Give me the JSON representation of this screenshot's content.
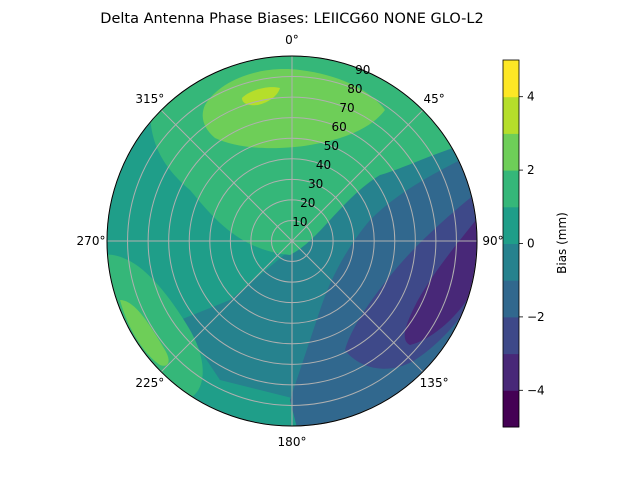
{
  "chart_data": {
    "type": "heatmap",
    "projection": "polar",
    "title": "Delta Antenna Phase Biases: LEIICG60        NONE GLO-L2",
    "theta_direction": "clockwise",
    "theta_zero": "top",
    "theta_ticks": [
      "0°",
      "45°",
      "90°",
      "135°",
      "180°",
      "225°",
      "270°",
      "315°"
    ],
    "theta_tick_degrees": [
      0,
      45,
      90,
      135,
      180,
      225,
      270,
      315
    ],
    "r_ticks": [
      "10",
      "20",
      "30",
      "40",
      "50",
      "60",
      "70",
      "80",
      "90"
    ],
    "r_tick_values": [
      10,
      20,
      30,
      40,
      50,
      60,
      70,
      80,
      90
    ],
    "r_range": [
      0,
      90
    ],
    "r_tick_label_angle_deg": 22.5,
    "grid": true,
    "colorbar": {
      "label": "Bias (mm)",
      "ticks": [
        "−4",
        "−2",
        "0",
        "2",
        "4"
      ],
      "tick_values": [
        -4,
        -2,
        0,
        2,
        4
      ],
      "range": [
        -5,
        5
      ],
      "levels": [
        -5,
        -4,
        -3,
        -2,
        -1,
        0,
        1,
        2,
        3,
        4,
        5
      ],
      "colors": [
        "#440154",
        "#482878",
        "#3e4989",
        "#31688e",
        "#26828e",
        "#1f9e89",
        "#35b779",
        "#6ece58",
        "#b5de2b",
        "#fde725"
      ]
    },
    "regions": [
      {
        "level_band": 0,
        "bias_range": [
          -1,
          0
        ],
        "description": "base"
      },
      {
        "level_band": 1,
        "bias_range": [
          0,
          1
        ],
        "description": "large band west and south"
      },
      {
        "level_band": 2,
        "bias_range": [
          1,
          2
        ],
        "description": "north-west band"
      },
      {
        "level_band": 3,
        "bias_range": [
          2,
          3
        ],
        "description": "north lobe"
      },
      {
        "level_band": 4,
        "bias_range": [
          3,
          4
        ],
        "description": "north peak near az 340 el 78"
      },
      {
        "level_band": 3,
        "bias_range": [
          2,
          3
        ],
        "description": "south-west lobe near az 235"
      },
      {
        "level_band": -1,
        "bias_range": [
          -2,
          -1
        ],
        "description": "south-east band"
      },
      {
        "level_band": -2,
        "bias_range": [
          -3,
          -2
        ],
        "description": "east lobe"
      },
      {
        "level_band": -3,
        "bias_range": [
          -4,
          -3
        ],
        "description": "east minimum near az 115"
      }
    ]
  }
}
